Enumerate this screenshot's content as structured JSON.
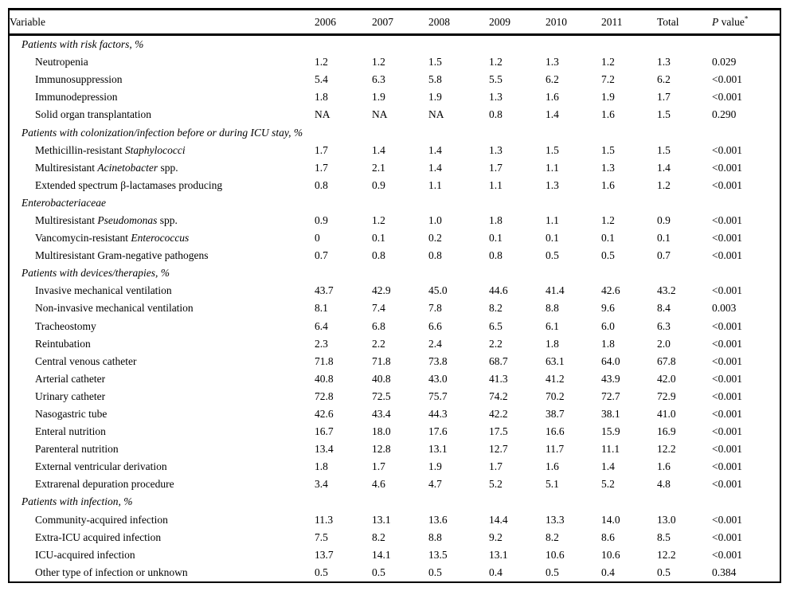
{
  "table": {
    "header": {
      "variable": "Variable",
      "years": [
        "2006",
        "2007",
        "2008",
        "2009",
        "2010",
        "2011"
      ],
      "total": "Total",
      "pvalue_p": "P",
      "pvalue_rest": " value",
      "pvalue_sup": "*"
    },
    "rows": [
      {
        "type": "section",
        "parts": [
          {
            "t": "Patients with risk factors, %",
            "i": true
          }
        ]
      },
      {
        "type": "data",
        "parts": [
          {
            "t": "Neutropenia",
            "i": false
          }
        ],
        "values": [
          "1.2",
          "1.2",
          "1.5",
          "1.2",
          "1.3",
          "1.2",
          "1.3"
        ],
        "p": "0.029"
      },
      {
        "type": "data",
        "parts": [
          {
            "t": "Immunosuppression",
            "i": false
          }
        ],
        "values": [
          "5.4",
          "6.3",
          "5.8",
          "5.5",
          "6.2",
          "7.2",
          "6.2"
        ],
        "p": "<0.001"
      },
      {
        "type": "data",
        "parts": [
          {
            "t": "Immunodepression",
            "i": false
          }
        ],
        "values": [
          "1.8",
          "1.9",
          "1.9",
          "1.3",
          "1.6",
          "1.9",
          "1.7"
        ],
        "p": "<0.001"
      },
      {
        "type": "data",
        "parts": [
          {
            "t": "Solid organ transplantation",
            "i": false
          }
        ],
        "values": [
          "NA",
          "NA",
          "NA",
          "0.8",
          "1.4",
          "1.6",
          "1.5"
        ],
        "p": "0.290"
      },
      {
        "type": "section",
        "parts": [
          {
            "t": "Patients with colonization/infection before or during ICU stay, %",
            "i": true
          }
        ]
      },
      {
        "type": "data",
        "parts": [
          {
            "t": "Methicillin-resistant ",
            "i": false
          },
          {
            "t": "Staphylococci",
            "i": true
          }
        ],
        "values": [
          "1.7",
          "1.4",
          "1.4",
          "1.3",
          "1.5",
          "1.5",
          "1.5"
        ],
        "p": "<0.001"
      },
      {
        "type": "data",
        "parts": [
          {
            "t": "Multiresistant ",
            "i": false
          },
          {
            "t": "Acinetobacter",
            "i": true
          },
          {
            "t": " spp.",
            "i": false
          }
        ],
        "values": [
          "1.7",
          "2.1",
          "1.4",
          "1.7",
          "1.1",
          "1.3",
          "1.4"
        ],
        "p": "<0.001"
      },
      {
        "type": "data",
        "parts": [
          {
            "t": "Extended spectrum β-lactamases producing",
            "i": false
          }
        ],
        "values": [
          "0.8",
          "0.9",
          "1.1",
          "1.1",
          "1.3",
          "1.6",
          "1.2"
        ],
        "p": "<0.001"
      },
      {
        "type": "continuation",
        "parts": [
          {
            "t": "Enterobacteriaceae",
            "i": true
          }
        ],
        "values": [
          "",
          "",
          "",
          "",
          "",
          "",
          ""
        ],
        "p": ""
      },
      {
        "type": "data",
        "parts": [
          {
            "t": "Multiresistant ",
            "i": false
          },
          {
            "t": "Pseudomonas",
            "i": true
          },
          {
            "t": " spp.",
            "i": false
          }
        ],
        "values": [
          "0.9",
          "1.2",
          "1.0",
          "1.8",
          "1.1",
          "1.2",
          "0.9"
        ],
        "p": "<0.001"
      },
      {
        "type": "data",
        "parts": [
          {
            "t": "Vancomycin-resistant ",
            "i": false
          },
          {
            "t": "Enterococcus",
            "i": true
          }
        ],
        "values": [
          "0",
          "0.1",
          "0.2",
          "0.1",
          "0.1",
          "0.1",
          "0.1"
        ],
        "p": "<0.001"
      },
      {
        "type": "data",
        "parts": [
          {
            "t": "Multiresistant Gram-negative pathogens",
            "i": false
          }
        ],
        "values": [
          "0.7",
          "0.8",
          "0.8",
          "0.8",
          "0.5",
          "0.5",
          "0.7"
        ],
        "p": "<0.001"
      },
      {
        "type": "section",
        "parts": [
          {
            "t": "Patients with devices/therapies, %",
            "i": true
          }
        ]
      },
      {
        "type": "data",
        "parts": [
          {
            "t": "Invasive mechanical ventilation",
            "i": false
          }
        ],
        "values": [
          "43.7",
          "42.9",
          "45.0",
          "44.6",
          "41.4",
          "42.6",
          "43.2"
        ],
        "p": "<0.001"
      },
      {
        "type": "data",
        "parts": [
          {
            "t": "Non-invasive mechanical ventilation",
            "i": false
          }
        ],
        "values": [
          "8.1",
          "7.4",
          "7.8",
          "8.2",
          "8.8",
          "9.6",
          "8.4"
        ],
        "p": "0.003"
      },
      {
        "type": "data",
        "parts": [
          {
            "t": "Tracheostomy",
            "i": false
          }
        ],
        "values": [
          "6.4",
          "6.8",
          "6.6",
          "6.5",
          "6.1",
          "6.0",
          "6.3"
        ],
        "p": "<0.001"
      },
      {
        "type": "data",
        "parts": [
          {
            "t": "Reintubation",
            "i": false
          }
        ],
        "values": [
          "2.3",
          "2.2",
          "2.4",
          "2.2",
          "1.8",
          "1.8",
          "2.0"
        ],
        "p": "<0.001"
      },
      {
        "type": "data",
        "parts": [
          {
            "t": "Central venous catheter",
            "i": false
          }
        ],
        "values": [
          "71.8",
          "71.8",
          "73.8",
          "68.7",
          "63.1",
          "64.0",
          "67.8"
        ],
        "p": "<0.001"
      },
      {
        "type": "data",
        "parts": [
          {
            "t": "Arterial catheter",
            "i": false
          }
        ],
        "values": [
          "40.8",
          "40.8",
          "43.0",
          "41.3",
          "41.2",
          "43.9",
          "42.0"
        ],
        "p": "<0.001"
      },
      {
        "type": "data",
        "parts": [
          {
            "t": "Urinary catheter",
            "i": false
          }
        ],
        "values": [
          "72.8",
          "72.5",
          "75.7",
          "74.2",
          "70.2",
          "72.7",
          "72.9"
        ],
        "p": "<0.001"
      },
      {
        "type": "data",
        "parts": [
          {
            "t": "Nasogastric tube",
            "i": false
          }
        ],
        "values": [
          "42.6",
          "43.4",
          "44.3",
          "42.2",
          "38.7",
          "38.1",
          "41.0"
        ],
        "p": "<0.001"
      },
      {
        "type": "data",
        "parts": [
          {
            "t": "Enteral nutrition",
            "i": false
          }
        ],
        "values": [
          "16.7",
          "18.0",
          "17.6",
          "17.5",
          "16.6",
          "15.9",
          "16.9"
        ],
        "p": "<0.001"
      },
      {
        "type": "data",
        "parts": [
          {
            "t": "Parenteral nutrition",
            "i": false
          }
        ],
        "values": [
          "13.4",
          "12.8",
          "13.1",
          "12.7",
          "11.7",
          "11.1",
          "12.2"
        ],
        "p": "<0.001"
      },
      {
        "type": "data",
        "parts": [
          {
            "t": "External ventricular derivation",
            "i": false
          }
        ],
        "values": [
          "1.8",
          "1.7",
          "1.9",
          "1.7",
          "1.6",
          "1.4",
          "1.6"
        ],
        "p": "<0.001"
      },
      {
        "type": "data",
        "parts": [
          {
            "t": "Extrarenal depuration procedure",
            "i": false
          }
        ],
        "values": [
          "3.4",
          "4.6",
          "4.7",
          "5.2",
          "5.1",
          "5.2",
          "4.8"
        ],
        "p": "<0.001"
      },
      {
        "type": "section",
        "parts": [
          {
            "t": "Patients with infection, %",
            "i": true
          }
        ]
      },
      {
        "type": "data",
        "parts": [
          {
            "t": "Community-acquired infection",
            "i": false
          }
        ],
        "values": [
          "11.3",
          "13.1",
          "13.6",
          "14.4",
          "13.3",
          "14.0",
          "13.0"
        ],
        "p": "<0.001"
      },
      {
        "type": "data",
        "parts": [
          {
            "t": "Extra-ICU acquired infection",
            "i": false
          }
        ],
        "values": [
          "7.5",
          "8.2",
          "8.8",
          "9.2",
          "8.2",
          "8.6",
          "8.5"
        ],
        "p": "<0.001"
      },
      {
        "type": "data",
        "parts": [
          {
            "t": "ICU-acquired infection",
            "i": false
          }
        ],
        "values": [
          "13.7",
          "14.1",
          "13.5",
          "13.1",
          "10.6",
          "10.6",
          "12.2"
        ],
        "p": "<0.001"
      },
      {
        "type": "data",
        "parts": [
          {
            "t": "Other type of infection or unknown",
            "i": false
          }
        ],
        "values": [
          "0.5",
          "0.5",
          "0.5",
          "0.4",
          "0.5",
          "0.4",
          "0.5"
        ],
        "p": "0.384"
      }
    ]
  }
}
